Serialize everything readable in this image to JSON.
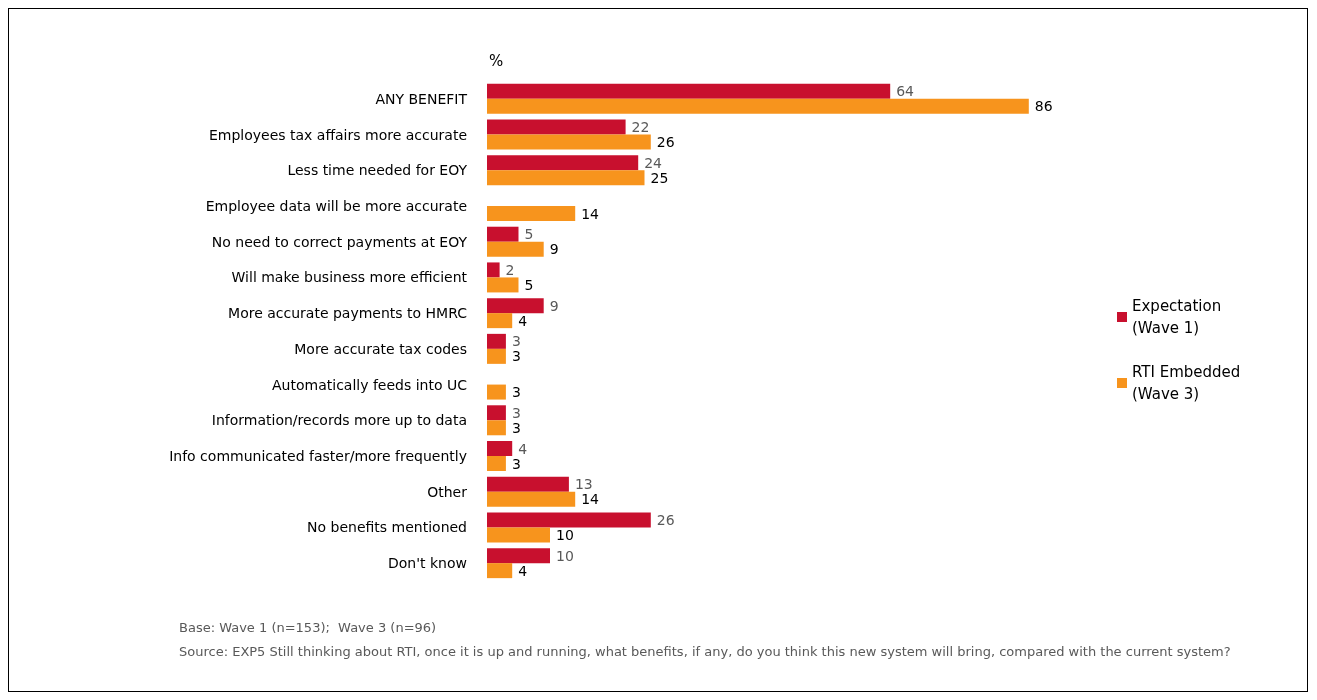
{
  "chart_data": {
    "type": "bar",
    "orientation": "horizontal",
    "categories": [
      "ANY BENEFIT",
      "Employees tax affairs more accurate",
      "Less time needed for EOY",
      "Employee data will be more accurate",
      "No need to correct payments at EOY",
      "Will make business more efficient",
      "More accurate payments to HMRC",
      "More accurate tax codes",
      "Automatically feeds into UC",
      "Information/records more up to data",
      "Info communicated faster/more frequently",
      "Other",
      "No benefits mentioned",
      "Don't know"
    ],
    "series": [
      {
        "name": "Expectation (Wave 1)",
        "color": "#c8102e",
        "values": [
          64,
          22,
          24,
          null,
          5,
          2,
          9,
          3,
          null,
          3,
          4,
          13,
          26,
          10
        ]
      },
      {
        "name": "RTI Embedded (Wave 3)",
        "color": "#f7941d",
        "values": [
          86,
          26,
          25,
          14,
          9,
          5,
          4,
          3,
          3,
          3,
          3,
          14,
          10,
          4
        ]
      }
    ],
    "tick_labels": "y",
    "data_labels": true,
    "legend": "right",
    "grid": false,
    "annotations": [
      "%",
      "Base: Wave 1 (n=153);  Wave 3 (n=96)",
      "Source: EXP5 Still thinking about RTI, once it is up and running, what benefits, if any, do you think this new system will bring, compared with the current system?"
    ]
  }
}
